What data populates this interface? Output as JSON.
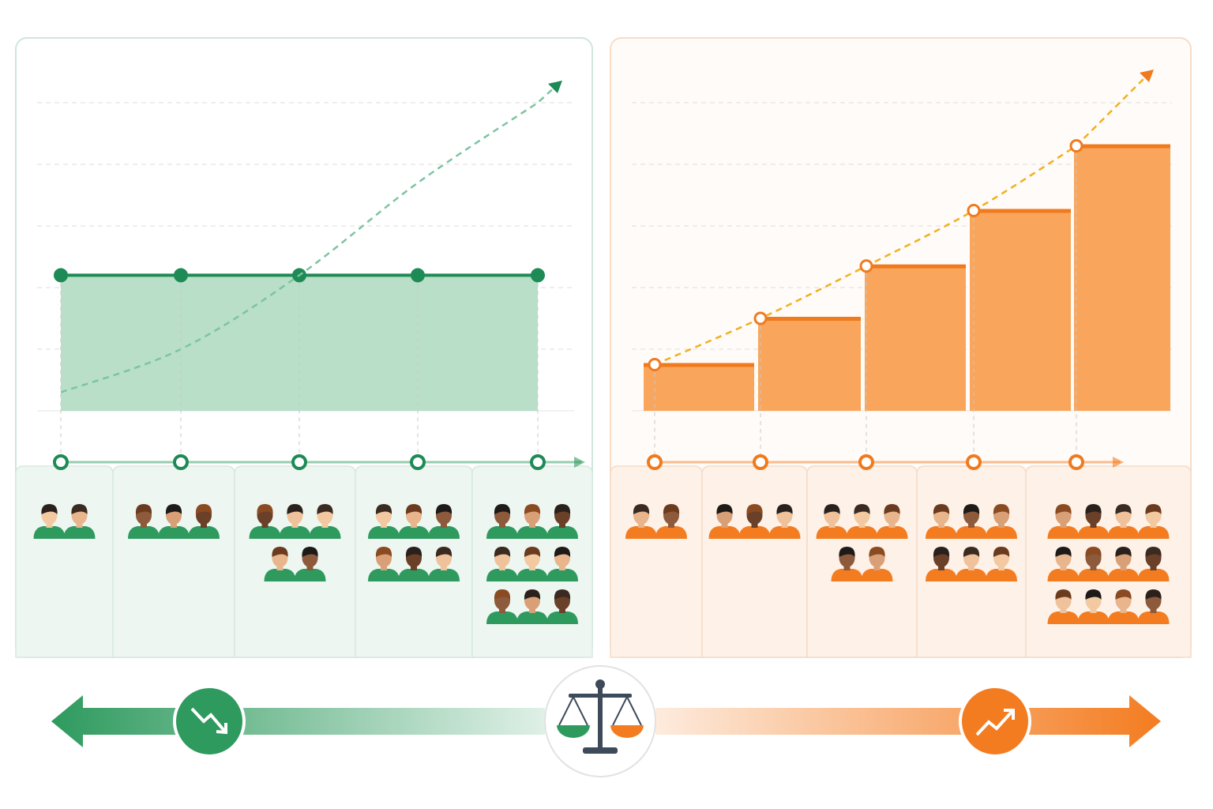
{
  "chart_data": [
    {
      "type": "flat-area",
      "color": "#1e8a55",
      "area_color": "#b9dfc9",
      "trend_color": "#7cc4a0",
      "values": [
        2.2,
        2.2,
        2.2,
        2.2,
        2.2
      ],
      "trend_values": [
        0.3,
        1.0,
        2.2,
        3.7,
        5.0
      ],
      "people": [
        2,
        3,
        5,
        6,
        9
      ],
      "ylim": [
        0,
        5
      ],
      "yticks": [
        1,
        2,
        3,
        4,
        5
      ],
      "grid": true
    },
    {
      "type": "step-bar",
      "color": "#f07a1e",
      "area_color": "#f9a65c",
      "trend_color": "#f0b020",
      "values": [
        0.75,
        1.5,
        2.35,
        3.25,
        4.3
      ],
      "trend_values": [
        0.75,
        1.5,
        2.35,
        3.25,
        4.3
      ],
      "people": [
        2,
        3,
        5,
        6,
        12
      ],
      "ylim": [
        0,
        5
      ],
      "yticks": [
        1,
        2,
        3,
        4,
        5
      ],
      "grid": true
    }
  ]
}
